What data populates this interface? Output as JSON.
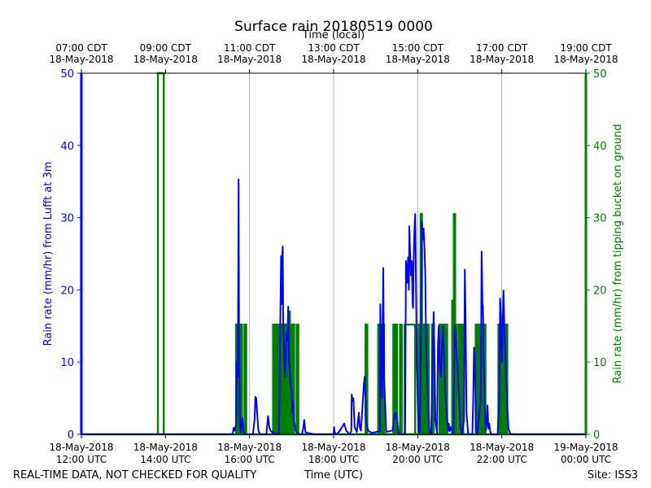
{
  "chart_data": {
    "type": "line",
    "title": "Surface rain 20180519 0000",
    "top_axis_label": "Time (local)",
    "xlabel": "Time (UTC)",
    "ylabel_left": "Rain rate (mm/hr) from Lufft at 3m",
    "ylabel_right": "Rain rate (mm/hr) from tipping bucket on ground",
    "footer_left": "REAL-TIME DATA, NOT CHECKED FOR QUALITY",
    "footer_right": "Site: ISS3",
    "xlim_hours": [
      12,
      24
    ],
    "ylim": [
      0,
      50
    ],
    "y_ticks": [
      0,
      10,
      20,
      30,
      40,
      50
    ],
    "x_ticks_bottom": [
      {
        "hour": 12,
        "line1": "18-May-2018",
        "line2": "12:00 UTC"
      },
      {
        "hour": 14,
        "line1": "18-May-2018",
        "line2": "14:00 UTC"
      },
      {
        "hour": 16,
        "line1": "18-May-2018",
        "line2": "16:00 UTC"
      },
      {
        "hour": 18,
        "line1": "18-May-2018",
        "line2": "18:00 UTC"
      },
      {
        "hour": 20,
        "line1": "18-May-2018",
        "line2": "20:00 UTC"
      },
      {
        "hour": 22,
        "line1": "18-May-2018",
        "line2": "22:00 UTC"
      },
      {
        "hour": 24,
        "line1": "19-May-2018",
        "line2": "00:00 UTC"
      }
    ],
    "x_ticks_top": [
      {
        "hour": 12,
        "line1": "07:00 CDT",
        "line2": "18-May-2018"
      },
      {
        "hour": 14,
        "line1": "09:00 CDT",
        "line2": "18-May-2018"
      },
      {
        "hour": 16,
        "line1": "11:00 CDT",
        "line2": "18-May-2018"
      },
      {
        "hour": 18,
        "line1": "13:00 CDT",
        "line2": "18-May-2018"
      },
      {
        "hour": 20,
        "line1": "15:00 CDT",
        "line2": "18-May-2018"
      },
      {
        "hour": 22,
        "line1": "17:00 CDT",
        "line2": "18-May-2018"
      },
      {
        "hour": 24,
        "line1": "19:00 CDT",
        "line2": "18-May-2018"
      }
    ],
    "grid_hours": [
      16,
      18,
      20,
      22
    ],
    "colors": {
      "lufft": "#0000ff",
      "bucket": "#008000",
      "grid": "#b0b0b0",
      "axis": "#000000"
    },
    "series": [
      {
        "name": "Lufft at 3m",
        "axis": "left",
        "color": "#0000ff",
        "points": [
          [
            12.0,
            0
          ],
          [
            15.6,
            0
          ],
          [
            15.62,
            0.9
          ],
          [
            15.64,
            0.5
          ],
          [
            15.66,
            1
          ],
          [
            15.68,
            1.2
          ],
          [
            15.7,
            10
          ],
          [
            15.72,
            8
          ],
          [
            15.73,
            20
          ],
          [
            15.74,
            35.3
          ],
          [
            15.75,
            14
          ],
          [
            15.77,
            2
          ],
          [
            15.79,
            0.3
          ],
          [
            15.81,
            1.5
          ],
          [
            15.83,
            2.3
          ],
          [
            15.85,
            0.5
          ],
          [
            15.88,
            0
          ],
          [
            16.08,
            0
          ],
          [
            16.12,
            2
          ],
          [
            16.14,
            5.2
          ],
          [
            16.16,
            5
          ],
          [
            16.18,
            3
          ],
          [
            16.21,
            0.5
          ],
          [
            16.25,
            0
          ],
          [
            16.4,
            0
          ],
          [
            16.44,
            2.5
          ],
          [
            16.47,
            1
          ],
          [
            16.5,
            0.5
          ],
          [
            16.55,
            0.2
          ],
          [
            16.7,
            0
          ],
          [
            16.75,
            24.7
          ],
          [
            16.77,
            18
          ],
          [
            16.78,
            25.2
          ],
          [
            16.79,
            26
          ],
          [
            16.8,
            16
          ],
          [
            16.82,
            12
          ],
          [
            16.84,
            8
          ],
          [
            16.86,
            10
          ],
          [
            16.88,
            14
          ],
          [
            16.9,
            13
          ],
          [
            16.92,
            17.7
          ],
          [
            16.94,
            10
          ],
          [
            16.96,
            8.4
          ],
          [
            16.98,
            6.5
          ],
          [
            17.0,
            6.4
          ],
          [
            17.02,
            3
          ],
          [
            17.03,
            4.7
          ],
          [
            17.05,
            2
          ],
          [
            17.07,
            1.5
          ],
          [
            17.1,
            0.5
          ],
          [
            17.15,
            0.1
          ],
          [
            17.2,
            0
          ],
          [
            17.25,
            0
          ],
          [
            17.28,
            1
          ],
          [
            17.3,
            2
          ],
          [
            17.33,
            0.3
          ],
          [
            17.38,
            0.2
          ],
          [
            17.45,
            0.1
          ],
          [
            17.55,
            0
          ],
          [
            18.0,
            0
          ],
          [
            18.01,
            1
          ],
          [
            18.03,
            0.2
          ],
          [
            18.08,
            0
          ],
          [
            18.15,
            0.5
          ],
          [
            18.2,
            1
          ],
          [
            18.25,
            1.5
          ],
          [
            18.3,
            0.5
          ],
          [
            18.38,
            0
          ],
          [
            18.42,
            0.4
          ],
          [
            18.43,
            5.5
          ],
          [
            18.45,
            4.6
          ],
          [
            18.47,
            5
          ],
          [
            18.5,
            1
          ],
          [
            18.55,
            0.3
          ],
          [
            18.6,
            3
          ],
          [
            18.62,
            1
          ],
          [
            18.65,
            0.5
          ],
          [
            18.72,
            7
          ],
          [
            18.74,
            8
          ],
          [
            18.77,
            2
          ],
          [
            18.82,
            0.5
          ],
          [
            18.9,
            0.2
          ],
          [
            19.0,
            0.3
          ],
          [
            19.1,
            0.5
          ],
          [
            19.11,
            18
          ],
          [
            19.12,
            14
          ],
          [
            19.15,
            5
          ],
          [
            19.18,
            23
          ],
          [
            19.2,
            8
          ],
          [
            19.22,
            5
          ],
          [
            19.25,
            0.3
          ],
          [
            19.3,
            0.4
          ],
          [
            19.4,
            0.5
          ],
          [
            19.45,
            2.8
          ],
          [
            19.48,
            3
          ],
          [
            19.52,
            1.5
          ],
          [
            19.55,
            0
          ],
          [
            19.7,
            0
          ],
          [
            19.72,
            24
          ],
          [
            19.75,
            21
          ],
          [
            19.77,
            24.5
          ],
          [
            19.79,
            20
          ],
          [
            19.8,
            28.8
          ],
          [
            19.82,
            25
          ],
          [
            19.84,
            22
          ],
          [
            19.86,
            24
          ],
          [
            19.88,
            18
          ],
          [
            19.89,
            17.5
          ],
          [
            19.9,
            23
          ],
          [
            19.92,
            28
          ],
          [
            19.94,
            30.5
          ],
          [
            19.96,
            20
          ],
          [
            19.98,
            10
          ],
          [
            20.0,
            5
          ],
          [
            20.02,
            0.5
          ],
          [
            20.05,
            0
          ],
          [
            20.08,
            15
          ],
          [
            20.1,
            29.5
          ],
          [
            20.12,
            27
          ],
          [
            20.14,
            28.5
          ],
          [
            20.16,
            26
          ],
          [
            20.18,
            22
          ],
          [
            20.2,
            12
          ],
          [
            20.24,
            5
          ],
          [
            20.28,
            0.5
          ],
          [
            20.32,
            0
          ],
          [
            20.35,
            10
          ],
          [
            20.38,
            16.9
          ],
          [
            20.4,
            10
          ],
          [
            20.42,
            2
          ],
          [
            20.46,
            0
          ],
          [
            20.48,
            12
          ],
          [
            20.5,
            15
          ],
          [
            20.52,
            10
          ],
          [
            20.55,
            8
          ],
          [
            20.6,
            15
          ],
          [
            20.62,
            12
          ],
          [
            20.65,
            6
          ],
          [
            20.7,
            2
          ],
          [
            20.72,
            0.5
          ],
          [
            20.74,
            1.5
          ],
          [
            20.76,
            0.4
          ],
          [
            20.78,
            1
          ],
          [
            20.85,
            0
          ],
          [
            20.88,
            15
          ],
          [
            20.92,
            12
          ],
          [
            20.96,
            8
          ],
          [
            20.98,
            5
          ],
          [
            21.02,
            1
          ],
          [
            21.06,
            0
          ],
          [
            21.1,
            2
          ],
          [
            21.12,
            22.8
          ],
          [
            21.14,
            15
          ],
          [
            21.16,
            3
          ],
          [
            21.2,
            0
          ],
          [
            21.3,
            0
          ],
          [
            21.32,
            5
          ],
          [
            21.34,
            12
          ],
          [
            21.36,
            11
          ],
          [
            21.38,
            2
          ],
          [
            21.4,
            0.5
          ],
          [
            21.42,
            0
          ],
          [
            21.5,
            5
          ],
          [
            21.52,
            25.3
          ],
          [
            21.54,
            18
          ],
          [
            21.55,
            17.9
          ],
          [
            21.57,
            10
          ],
          [
            21.6,
            3
          ],
          [
            21.62,
            0.5
          ],
          [
            21.64,
            1.5
          ],
          [
            21.66,
            4
          ],
          [
            21.68,
            0.8
          ],
          [
            21.7,
            1.5
          ],
          [
            21.72,
            0.5
          ],
          [
            21.75,
            0
          ],
          [
            21.9,
            0
          ],
          [
            21.94,
            5
          ],
          [
            21.96,
            18.8
          ],
          [
            21.98,
            16
          ],
          [
            22.0,
            10
          ],
          [
            22.02,
            15
          ],
          [
            22.04,
            19.9
          ],
          [
            22.06,
            15
          ],
          [
            22.08,
            12
          ],
          [
            22.1,
            8
          ],
          [
            22.13,
            4
          ],
          [
            22.16,
            0.8
          ],
          [
            22.2,
            0.1
          ],
          [
            22.25,
            0
          ],
          [
            24.0,
            0
          ]
        ]
      },
      {
        "name": "Tipping bucket on ground",
        "axis": "right",
        "color": "#008000",
        "pulses": [
          [
            13.82,
            13.96,
            50
          ],
          [
            15.68,
            15.72,
            15.2
          ],
          [
            15.73,
            15.77,
            15.2
          ],
          [
            15.78,
            15.82,
            15.2
          ],
          [
            15.88,
            15.92,
            15.2
          ],
          [
            16.56,
            16.6,
            15.2
          ],
          [
            16.61,
            16.65,
            15.2
          ],
          [
            16.66,
            16.7,
            15.2
          ],
          [
            16.72,
            16.76,
            15.2
          ],
          [
            16.77,
            16.81,
            15.2
          ],
          [
            16.82,
            16.86,
            15.2
          ],
          [
            16.87,
            16.91,
            15.2
          ],
          [
            16.92,
            16.96,
            17
          ],
          [
            16.97,
            17.01,
            15.2
          ],
          [
            17.02,
            17.06,
            15.2
          ],
          [
            17.12,
            17.16,
            15.2
          ],
          [
            18.76,
            18.8,
            15.2
          ],
          [
            19.06,
            19.1,
            15.2
          ],
          [
            19.11,
            19.15,
            15.2
          ],
          [
            19.16,
            19.2,
            15.2
          ],
          [
            19.42,
            19.46,
            15.2
          ],
          [
            19.47,
            19.51,
            15.2
          ],
          [
            19.58,
            19.62,
            15.2
          ],
          [
            19.69,
            19.94,
            15.2
          ],
          [
            20.02,
            20.06,
            15.2
          ],
          [
            20.07,
            20.1,
            30.5
          ],
          [
            20.11,
            20.15,
            15.2
          ],
          [
            20.16,
            20.2,
            15.2
          ],
          [
            20.22,
            20.26,
            15.2
          ],
          [
            20.34,
            20.38,
            15.2
          ],
          [
            20.52,
            20.56,
            15.2
          ],
          [
            20.6,
            20.64,
            15.2
          ],
          [
            20.66,
            20.7,
            15.2
          ],
          [
            20.82,
            20.85,
            18.5
          ],
          [
            20.86,
            20.89,
            30.5
          ],
          [
            20.9,
            20.93,
            15.2
          ],
          [
            20.98,
            21.02,
            15.2
          ],
          [
            21.04,
            21.08,
            15.2
          ],
          [
            21.38,
            21.42,
            15.2
          ],
          [
            21.46,
            21.5,
            15.2
          ],
          [
            21.52,
            21.56,
            15.2
          ],
          [
            21.57,
            21.61,
            15.2
          ],
          [
            21.92,
            21.96,
            15.2
          ],
          [
            21.97,
            22.01,
            15.2
          ],
          [
            22.04,
            22.08,
            15.2
          ],
          [
            22.09,
            22.13,
            15.2
          ]
        ]
      }
    ]
  }
}
